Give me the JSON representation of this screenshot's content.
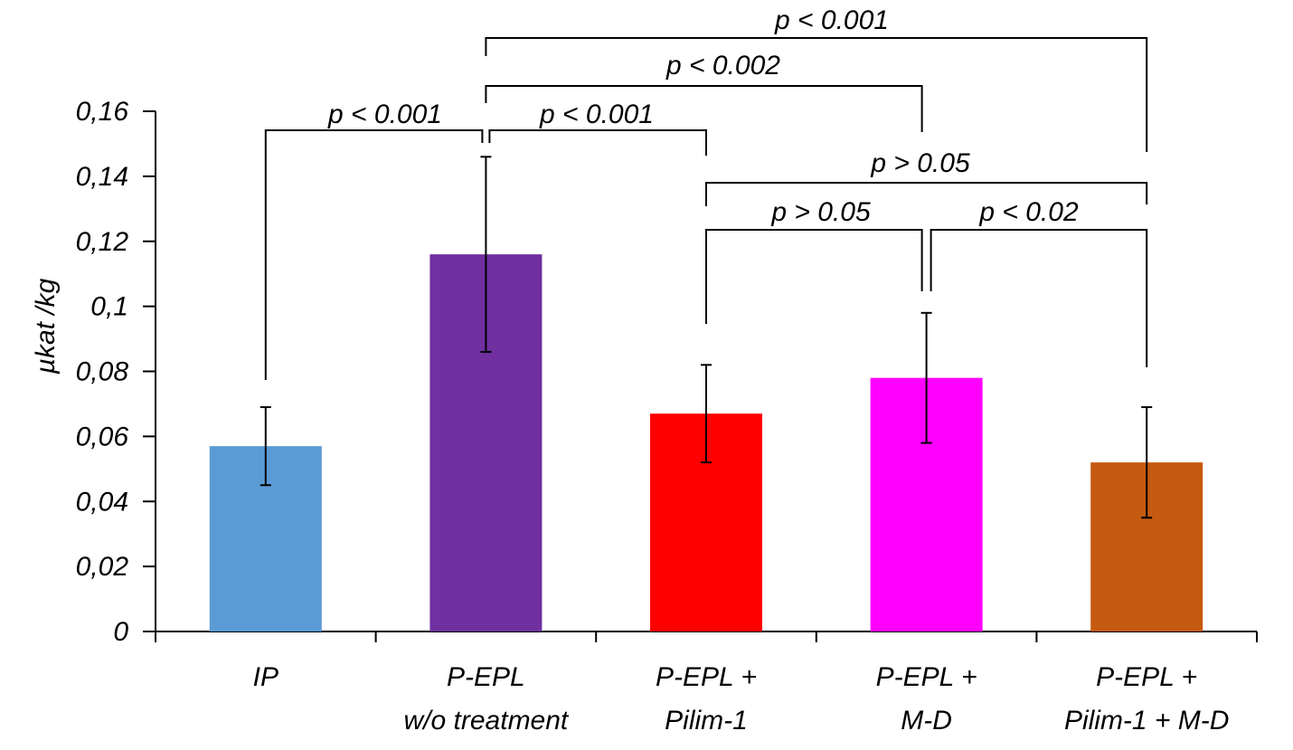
{
  "chart_data": {
    "type": "bar",
    "title": "",
    "xlabel": "",
    "ylabel": "µkat /kg",
    "ylim": [
      0,
      0.16
    ],
    "yticks": [
      "0",
      "0,02",
      "0,04",
      "0,06",
      "0,08",
      "0,1",
      "0,12",
      "0,14",
      "0,16"
    ],
    "grid": false,
    "legend": "none",
    "categories": [
      {
        "lines": [
          "IP"
        ]
      },
      {
        "lines": [
          "P-EPL",
          "w/o treatment"
        ]
      },
      {
        "lines": [
          "P-EPL +",
          "Pilim-1"
        ]
      },
      {
        "lines": [
          "P-EPL +",
          "M-D"
        ]
      },
      {
        "lines": [
          "P-EPL +",
          "Pilim-1 + M-D"
        ]
      }
    ],
    "values": [
      0.057,
      0.116,
      0.067,
      0.078,
      0.052
    ],
    "error_low": [
      0.045,
      0.086,
      0.052,
      0.058,
      0.035
    ],
    "error_high": [
      0.069,
      0.146,
      0.082,
      0.098,
      0.069
    ],
    "colors": [
      "#5B9BD5",
      "#7030A0",
      "#FF0000",
      "#FF00FF",
      "#C55A11"
    ],
    "significance": [
      {
        "from": 0,
        "to": 1,
        "label": "p < 0.001"
      },
      {
        "from": 1,
        "to": 2,
        "label": "p < 0.001"
      },
      {
        "from": 1,
        "to": 3,
        "label": "p < 0.002"
      },
      {
        "from": 1,
        "to": 4,
        "label": "p < 0.001"
      },
      {
        "from": 2,
        "to": 3,
        "label": "p > 0.05"
      },
      {
        "from": 2,
        "to": 4,
        "label": "p > 0.05"
      },
      {
        "from": 3,
        "to": 4,
        "label": "p < 0.02"
      }
    ]
  }
}
